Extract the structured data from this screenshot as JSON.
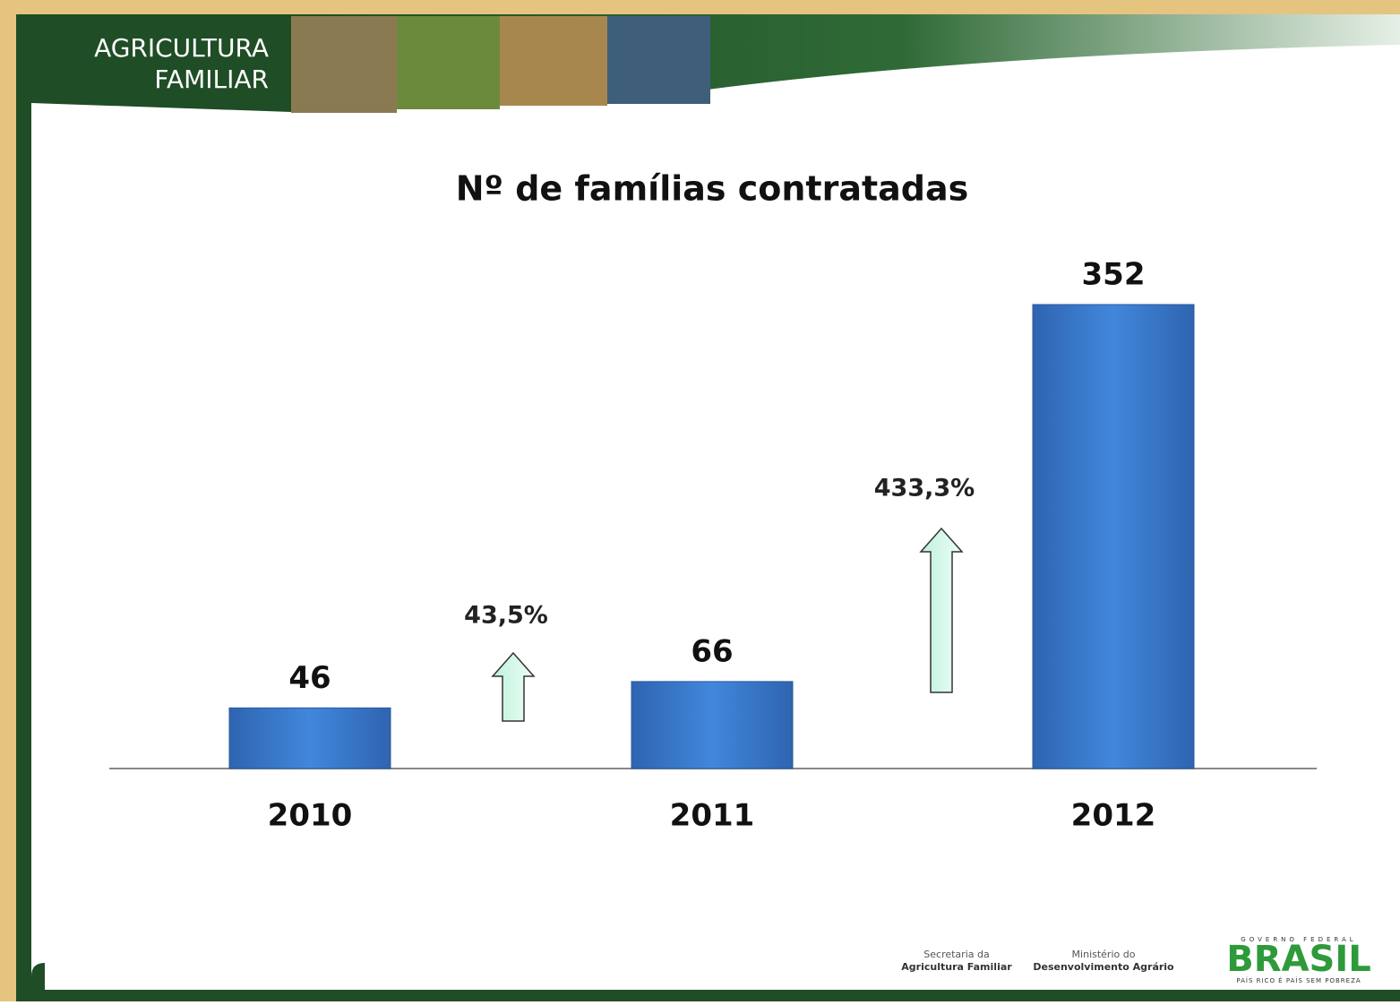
{
  "header": {
    "line1": "AGRICULTURA",
    "line2": "FAMILIAR"
  },
  "chart_data": {
    "type": "bar",
    "title": "Nº de famílias contratadas",
    "categories": [
      "2010",
      "2011",
      "2012"
    ],
    "values": [
      46,
      66,
      352
    ],
    "color": "#3a78c8",
    "annotations": [
      "43,5%",
      "433,3%"
    ]
  },
  "footer": {
    "secretaria": [
      "Secretaria da",
      "Agricultura Familiar"
    ],
    "ministerio": [
      "Ministério do",
      "Desenvolvimento Agrário"
    ],
    "brasil": {
      "top": "GOVERNO FEDERAL",
      "name": "BRASIL",
      "slogan": "PAÍS RICO É PAÍS SEM POBREZA"
    }
  }
}
